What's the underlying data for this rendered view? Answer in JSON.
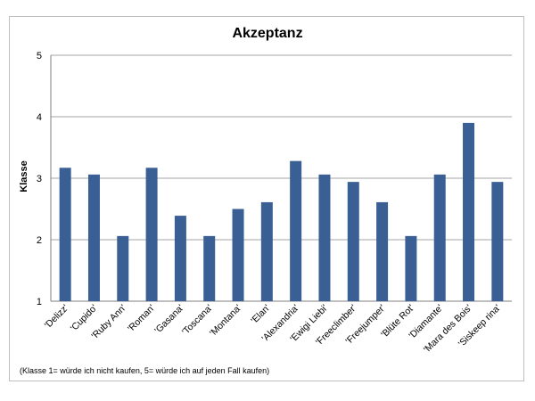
{
  "chart_data": {
    "type": "bar",
    "title": "Akzeptanz",
    "xlabel": "",
    "ylabel": "Klasse",
    "ylim": [
      1,
      5
    ],
    "yticks": [
      1,
      2,
      3,
      4,
      5
    ],
    "grid": true,
    "bar_color": "#3a5f94",
    "categories": [
      "'Delizz'",
      "'Cupido'",
      "'Ruby Ann'",
      "'Roman'",
      "'Gasana'",
      "'Toscana'",
      "'Montana'",
      "'Elan'",
      "'Alexandria'",
      "'Ewigi Liebi'",
      "'Freeclimber'",
      "'Freejumper'",
      "'Blüte Rot'",
      "'Diamante'",
      "'Mara des Bois'",
      "'Siskeep rina'"
    ],
    "values": [
      3.17,
      3.06,
      2.06,
      3.17,
      2.39,
      2.06,
      2.5,
      2.61,
      3.28,
      3.06,
      2.94,
      2.61,
      2.06,
      3.06,
      3.9,
      2.94
    ],
    "footnote": "(Klasse 1= würde ich nicht kaufen, 5= würde ich auf jeden Fall kaufen)"
  }
}
